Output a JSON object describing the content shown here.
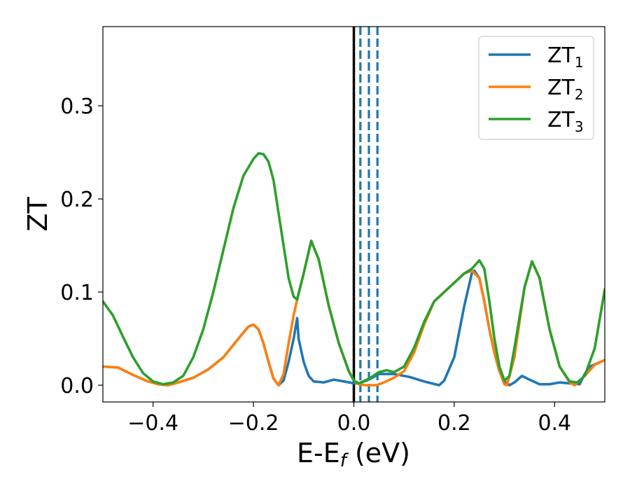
{
  "chart_data": {
    "type": "line",
    "title": "",
    "xlabel": {
      "main": "E-E",
      "sub": "f",
      "unit": " (eV)"
    },
    "ylabel": "ZT",
    "xlim": [
      -0.5,
      0.5
    ],
    "ylim": [
      -0.018,
      0.385
    ],
    "xticks": [
      -0.4,
      -0.2,
      0.0,
      0.2,
      0.4
    ],
    "xtick_labels": [
      "−0.4",
      "−0.2",
      "0.0",
      "0.2",
      "0.4"
    ],
    "yticks": [
      0.0,
      0.1,
      0.2,
      0.3
    ],
    "ytick_labels": [
      "0.0",
      "0.1",
      "0.2",
      "0.3"
    ],
    "grid": false,
    "legend_position": "top-right",
    "vlines": [
      {
        "x": 0.0,
        "style": "solid",
        "color": "#000000"
      },
      {
        "x": 0.013,
        "style": "dashed",
        "color": "#1f77b4"
      },
      {
        "x": 0.03,
        "style": "dashed",
        "color": "#1f77b4"
      },
      {
        "x": 0.047,
        "style": "dashed",
        "color": "#1f77b4"
      }
    ],
    "series": [
      {
        "name": "ZT",
        "sub": "1",
        "color": "#1f77b4",
        "points": [
          [
            -0.5,
            0.02
          ],
          [
            -0.47,
            0.019
          ],
          [
            -0.44,
            0.011
          ],
          [
            -0.41,
            0.004
          ],
          [
            -0.39,
            0.001
          ],
          [
            -0.37,
            0.0
          ],
          [
            -0.35,
            0.003
          ],
          [
            -0.32,
            0.008
          ],
          [
            -0.29,
            0.017
          ],
          [
            -0.26,
            0.03
          ],
          [
            -0.23,
            0.05
          ],
          [
            -0.21,
            0.063
          ],
          [
            -0.2,
            0.065
          ],
          [
            -0.19,
            0.06
          ],
          [
            -0.18,
            0.045
          ],
          [
            -0.17,
            0.025
          ],
          [
            -0.16,
            0.007
          ],
          [
            -0.15,
            0.0
          ],
          [
            -0.14,
            0.005
          ],
          [
            -0.13,
            0.025
          ],
          [
            -0.12,
            0.05
          ],
          [
            -0.113,
            0.072
          ],
          [
            -0.11,
            0.05
          ],
          [
            -0.1,
            0.025
          ],
          [
            -0.09,
            0.01
          ],
          [
            -0.08,
            0.004
          ],
          [
            -0.06,
            0.003
          ],
          [
            -0.04,
            0.006
          ],
          [
            -0.02,
            0.004
          ],
          [
            0.0,
            0.002
          ],
          [
            0.01,
            0.002
          ],
          [
            0.03,
            0.006
          ],
          [
            0.05,
            0.012
          ],
          [
            0.08,
            0.012
          ],
          [
            0.11,
            0.009
          ],
          [
            0.14,
            0.004
          ],
          [
            0.17,
            0.0
          ],
          [
            0.18,
            0.005
          ],
          [
            0.2,
            0.03
          ],
          [
            0.22,
            0.085
          ],
          [
            0.235,
            0.12
          ],
          [
            0.24,
            0.123
          ],
          [
            0.25,
            0.115
          ],
          [
            0.26,
            0.09
          ],
          [
            0.27,
            0.06
          ],
          [
            0.28,
            0.035
          ],
          [
            0.29,
            0.015
          ],
          [
            0.3,
            0.004
          ],
          [
            0.31,
            0.0
          ],
          [
            0.32,
            0.003
          ],
          [
            0.335,
            0.01
          ],
          [
            0.35,
            0.006
          ],
          [
            0.37,
            0.001
          ],
          [
            0.39,
            0.001
          ],
          [
            0.41,
            0.003
          ],
          [
            0.43,
            0.002
          ],
          [
            0.45,
            0.001
          ],
          [
            0.46,
            0.012
          ],
          [
            0.47,
            0.02
          ],
          [
            0.5,
            0.027
          ]
        ]
      },
      {
        "name": "ZT",
        "sub": "2",
        "color": "#ff7f0e",
        "points": [
          [
            -0.5,
            0.02
          ],
          [
            -0.47,
            0.019
          ],
          [
            -0.44,
            0.011
          ],
          [
            -0.41,
            0.004
          ],
          [
            -0.39,
            0.001
          ],
          [
            -0.37,
            0.0
          ],
          [
            -0.35,
            0.003
          ],
          [
            -0.32,
            0.008
          ],
          [
            -0.29,
            0.017
          ],
          [
            -0.26,
            0.03
          ],
          [
            -0.23,
            0.05
          ],
          [
            -0.21,
            0.063
          ],
          [
            -0.2,
            0.065
          ],
          [
            -0.19,
            0.06
          ],
          [
            -0.18,
            0.045
          ],
          [
            -0.17,
            0.025
          ],
          [
            -0.16,
            0.007
          ],
          [
            -0.15,
            0.0
          ],
          [
            -0.14,
            0.012
          ],
          [
            -0.13,
            0.045
          ],
          [
            -0.12,
            0.075
          ],
          [
            -0.113,
            0.092
          ],
          [
            -0.1,
            0.12
          ],
          [
            -0.085,
            0.155
          ],
          [
            -0.07,
            0.135
          ],
          [
            -0.05,
            0.085
          ],
          [
            -0.03,
            0.045
          ],
          [
            -0.01,
            0.015
          ],
          [
            0.0,
            0.005
          ],
          [
            0.01,
            0.001
          ],
          [
            0.025,
            0.0
          ],
          [
            0.045,
            0.0
          ],
          [
            0.06,
            0.003
          ],
          [
            0.08,
            0.008
          ],
          [
            0.1,
            0.015
          ],
          [
            0.12,
            0.035
          ],
          [
            0.14,
            0.065
          ],
          [
            0.16,
            0.09
          ],
          [
            0.18,
            0.1
          ],
          [
            0.2,
            0.11
          ],
          [
            0.22,
            0.12
          ],
          [
            0.235,
            0.123
          ],
          [
            0.25,
            0.115
          ],
          [
            0.26,
            0.09
          ],
          [
            0.27,
            0.06
          ],
          [
            0.28,
            0.035
          ],
          [
            0.29,
            0.015
          ],
          [
            0.3,
            0.001
          ],
          [
            0.305,
            0.0
          ],
          [
            0.32,
            0.03
          ],
          [
            0.34,
            0.105
          ],
          [
            0.355,
            0.133
          ],
          [
            0.37,
            0.115
          ],
          [
            0.39,
            0.06
          ],
          [
            0.41,
            0.02
          ],
          [
            0.43,
            0.003
          ],
          [
            0.44,
            0.0
          ],
          [
            0.46,
            0.01
          ],
          [
            0.48,
            0.022
          ],
          [
            0.5,
            0.027
          ]
        ]
      },
      {
        "name": "ZT",
        "sub": "3",
        "color": "#2ca02c",
        "points": [
          [
            -0.5,
            0.09
          ],
          [
            -0.48,
            0.075
          ],
          [
            -0.46,
            0.052
          ],
          [
            -0.44,
            0.03
          ],
          [
            -0.42,
            0.013
          ],
          [
            -0.4,
            0.004
          ],
          [
            -0.38,
            0.001
          ],
          [
            -0.36,
            0.003
          ],
          [
            -0.34,
            0.01
          ],
          [
            -0.32,
            0.03
          ],
          [
            -0.3,
            0.06
          ],
          [
            -0.28,
            0.1
          ],
          [
            -0.26,
            0.145
          ],
          [
            -0.24,
            0.19
          ],
          [
            -0.22,
            0.225
          ],
          [
            -0.2,
            0.243
          ],
          [
            -0.19,
            0.249
          ],
          [
            -0.18,
            0.248
          ],
          [
            -0.17,
            0.24
          ],
          [
            -0.16,
            0.22
          ],
          [
            -0.15,
            0.185
          ],
          [
            -0.14,
            0.15
          ],
          [
            -0.13,
            0.115
          ],
          [
            -0.12,
            0.095
          ],
          [
            -0.113,
            0.092
          ],
          [
            -0.1,
            0.12
          ],
          [
            -0.085,
            0.155
          ],
          [
            -0.07,
            0.135
          ],
          [
            -0.05,
            0.085
          ],
          [
            -0.03,
            0.045
          ],
          [
            -0.01,
            0.015
          ],
          [
            0.0,
            0.005
          ],
          [
            0.01,
            0.002
          ],
          [
            0.03,
            0.007
          ],
          [
            0.05,
            0.014
          ],
          [
            0.065,
            0.016
          ],
          [
            0.08,
            0.014
          ],
          [
            0.1,
            0.02
          ],
          [
            0.12,
            0.04
          ],
          [
            0.14,
            0.068
          ],
          [
            0.16,
            0.09
          ],
          [
            0.18,
            0.1
          ],
          [
            0.2,
            0.11
          ],
          [
            0.22,
            0.12
          ],
          [
            0.235,
            0.125
          ],
          [
            0.25,
            0.134
          ],
          [
            0.26,
            0.125
          ],
          [
            0.27,
            0.09
          ],
          [
            0.28,
            0.05
          ],
          [
            0.29,
            0.02
          ],
          [
            0.3,
            0.005
          ],
          [
            0.31,
            0.01
          ],
          [
            0.32,
            0.04
          ],
          [
            0.34,
            0.105
          ],
          [
            0.355,
            0.133
          ],
          [
            0.37,
            0.115
          ],
          [
            0.39,
            0.06
          ],
          [
            0.41,
            0.02
          ],
          [
            0.43,
            0.004
          ],
          [
            0.445,
            0.003
          ],
          [
            0.46,
            0.01
          ],
          [
            0.48,
            0.04
          ],
          [
            0.5,
            0.103
          ]
        ]
      }
    ]
  }
}
